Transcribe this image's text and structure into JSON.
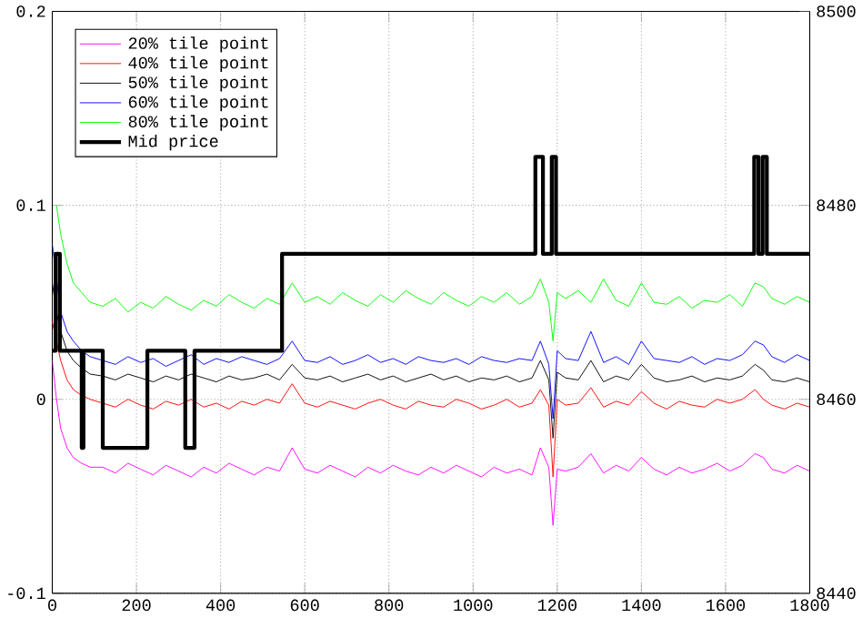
{
  "chart_data": {
    "type": "line",
    "x": [
      0,
      10,
      20,
      35,
      50,
      70,
      90,
      120,
      150,
      180,
      210,
      240,
      270,
      300,
      330,
      360,
      390,
      420,
      450,
      480,
      510,
      540,
      570,
      600,
      630,
      660,
      690,
      720,
      750,
      780,
      810,
      840,
      870,
      900,
      930,
      960,
      990,
      1020,
      1050,
      1080,
      1110,
      1140,
      1160,
      1180,
      1190,
      1200,
      1220,
      1250,
      1280,
      1310,
      1340,
      1370,
      1400,
      1430,
      1460,
      1490,
      1520,
      1550,
      1580,
      1610,
      1640,
      1670,
      1690,
      1710,
      1740,
      1770,
      1800
    ],
    "series": [
      {
        "name": "20% tile point",
        "color": "#ff00ff",
        "values": [
          0.02,
          0.0,
          -0.015,
          -0.025,
          -0.03,
          -0.033,
          -0.035,
          -0.035,
          -0.038,
          -0.033,
          -0.036,
          -0.039,
          -0.034,
          -0.037,
          -0.04,
          -0.035,
          -0.038,
          -0.033,
          -0.036,
          -0.039,
          -0.035,
          -0.037,
          -0.025,
          -0.036,
          -0.038,
          -0.034,
          -0.037,
          -0.04,
          -0.035,
          -0.038,
          -0.034,
          -0.037,
          -0.039,
          -0.035,
          -0.038,
          -0.034,
          -0.037,
          -0.04,
          -0.035,
          -0.038,
          -0.036,
          -0.039,
          -0.025,
          -0.035,
          -0.065,
          -0.036,
          -0.037,
          -0.035,
          -0.028,
          -0.038,
          -0.034,
          -0.037,
          -0.03,
          -0.036,
          -0.039,
          -0.035,
          -0.038,
          -0.036,
          -0.033,
          -0.037,
          -0.034,
          -0.028,
          -0.03,
          -0.036,
          -0.038,
          -0.034,
          -0.037
        ]
      },
      {
        "name": "40% tile point",
        "color": "#ff0000",
        "values": [
          0.04,
          null,
          0.02,
          0.01,
          0.005,
          0.002,
          0.0,
          -0.002,
          -0.004,
          0.0,
          -0.003,
          -0.005,
          -0.001,
          -0.003,
          0.0,
          -0.004,
          -0.002,
          -0.005,
          -0.001,
          -0.003,
          0.0,
          -0.002,
          0.008,
          -0.002,
          -0.004,
          -0.001,
          -0.003,
          -0.005,
          -0.002,
          0.0,
          -0.003,
          -0.005,
          -0.001,
          -0.003,
          -0.004,
          0.0,
          -0.002,
          -0.005,
          -0.003,
          0.0,
          -0.004,
          -0.002,
          0.005,
          -0.003,
          -0.04,
          0.0,
          -0.003,
          -0.002,
          0.006,
          -0.004,
          -0.001,
          -0.003,
          0.004,
          -0.002,
          -0.005,
          -0.001,
          -0.003,
          -0.004,
          0.0,
          -0.002,
          0.0,
          0.005,
          0.0,
          -0.003,
          -0.005,
          -0.002,
          -0.004
        ]
      },
      {
        "name": "50% tile point",
        "color": "#000000",
        "values": [
          0.06,
          0.045,
          0.035,
          0.025,
          0.02,
          0.016,
          0.013,
          0.012,
          0.01,
          0.013,
          0.011,
          0.009,
          0.012,
          0.01,
          0.013,
          0.011,
          0.009,
          0.012,
          0.01,
          0.011,
          0.013,
          0.01,
          0.018,
          0.011,
          0.01,
          0.012,
          0.009,
          0.011,
          0.013,
          0.01,
          0.012,
          0.009,
          0.011,
          0.013,
          0.01,
          0.012,
          0.009,
          0.011,
          0.01,
          0.012,
          0.009,
          0.011,
          0.02,
          0.01,
          -0.02,
          0.014,
          0.011,
          0.01,
          0.02,
          0.009,
          0.012,
          0.01,
          0.018,
          0.011,
          0.009,
          0.01,
          0.012,
          0.009,
          0.011,
          0.01,
          0.012,
          0.018,
          0.015,
          0.01,
          0.009,
          0.011,
          0.009
        ]
      },
      {
        "name": "60% tile point",
        "color": "#0000ff",
        "values": [
          0.08,
          null,
          0.045,
          0.035,
          0.03,
          0.025,
          0.022,
          0.02,
          0.018,
          0.022,
          0.019,
          0.021,
          0.017,
          0.02,
          0.023,
          0.018,
          0.021,
          0.019,
          0.022,
          0.02,
          0.018,
          0.021,
          0.03,
          0.02,
          0.019,
          0.022,
          0.018,
          0.02,
          0.023,
          0.019,
          0.021,
          0.018,
          0.022,
          0.02,
          0.019,
          0.021,
          0.018,
          0.022,
          0.02,
          0.019,
          0.021,
          0.02,
          0.03,
          0.018,
          -0.01,
          0.025,
          0.021,
          0.02,
          0.035,
          0.019,
          0.022,
          0.018,
          0.03,
          0.021,
          0.02,
          0.019,
          0.022,
          0.018,
          0.021,
          0.02,
          0.023,
          0.03,
          0.028,
          0.022,
          0.019,
          0.023,
          0.02
        ]
      },
      {
        "name": "80% tile point",
        "color": "#00ff00",
        "values": [
          null,
          0.1,
          0.085,
          0.07,
          0.06,
          0.055,
          0.05,
          0.048,
          0.052,
          0.045,
          0.05,
          0.047,
          0.053,
          0.049,
          0.046,
          0.051,
          0.048,
          0.054,
          0.05,
          0.047,
          0.052,
          0.049,
          0.06,
          0.05,
          0.053,
          0.049,
          0.055,
          0.051,
          0.048,
          0.054,
          0.05,
          0.056,
          0.052,
          0.049,
          0.055,
          0.051,
          0.048,
          0.053,
          0.05,
          0.055,
          0.049,
          0.053,
          0.062,
          0.05,
          0.03,
          0.055,
          0.052,
          0.056,
          0.05,
          0.062,
          0.051,
          0.048,
          0.06,
          0.05,
          0.049,
          0.053,
          0.047,
          0.051,
          0.05,
          0.054,
          0.048,
          0.06,
          0.058,
          0.052,
          0.049,
          0.053,
          0.05
        ]
      },
      {
        "name": "Mid price",
        "color": "#000000",
        "type": "step",
        "axis": "y2",
        "x": [
          0,
          8,
          18,
          70,
          74,
          120,
          226,
          316,
          338,
          546,
          1148,
          1166,
          1187,
          1197,
          1668,
          1678,
          1688,
          1698,
          1800
        ],
        "values": [
          8465,
          8475,
          8465,
          8455,
          8465,
          8455,
          8465,
          8455,
          8465,
          8475,
          8485,
          8475,
          8485,
          8475,
          8485,
          8475,
          8485,
          8475,
          8475
        ]
      }
    ],
    "xlim": [
      0,
      1800
    ],
    "xticks": [
      0,
      200,
      400,
      600,
      800,
      1000,
      1200,
      1400,
      1600,
      1800
    ],
    "ylim": [
      -0.1,
      0.2
    ],
    "yticks": [
      -0.1,
      0,
      0.1,
      0.2
    ],
    "y2lim": [
      8440,
      8500
    ],
    "y2ticks": [
      8440,
      8460,
      8480,
      8500
    ],
    "grid": true,
    "legend": "top left"
  }
}
